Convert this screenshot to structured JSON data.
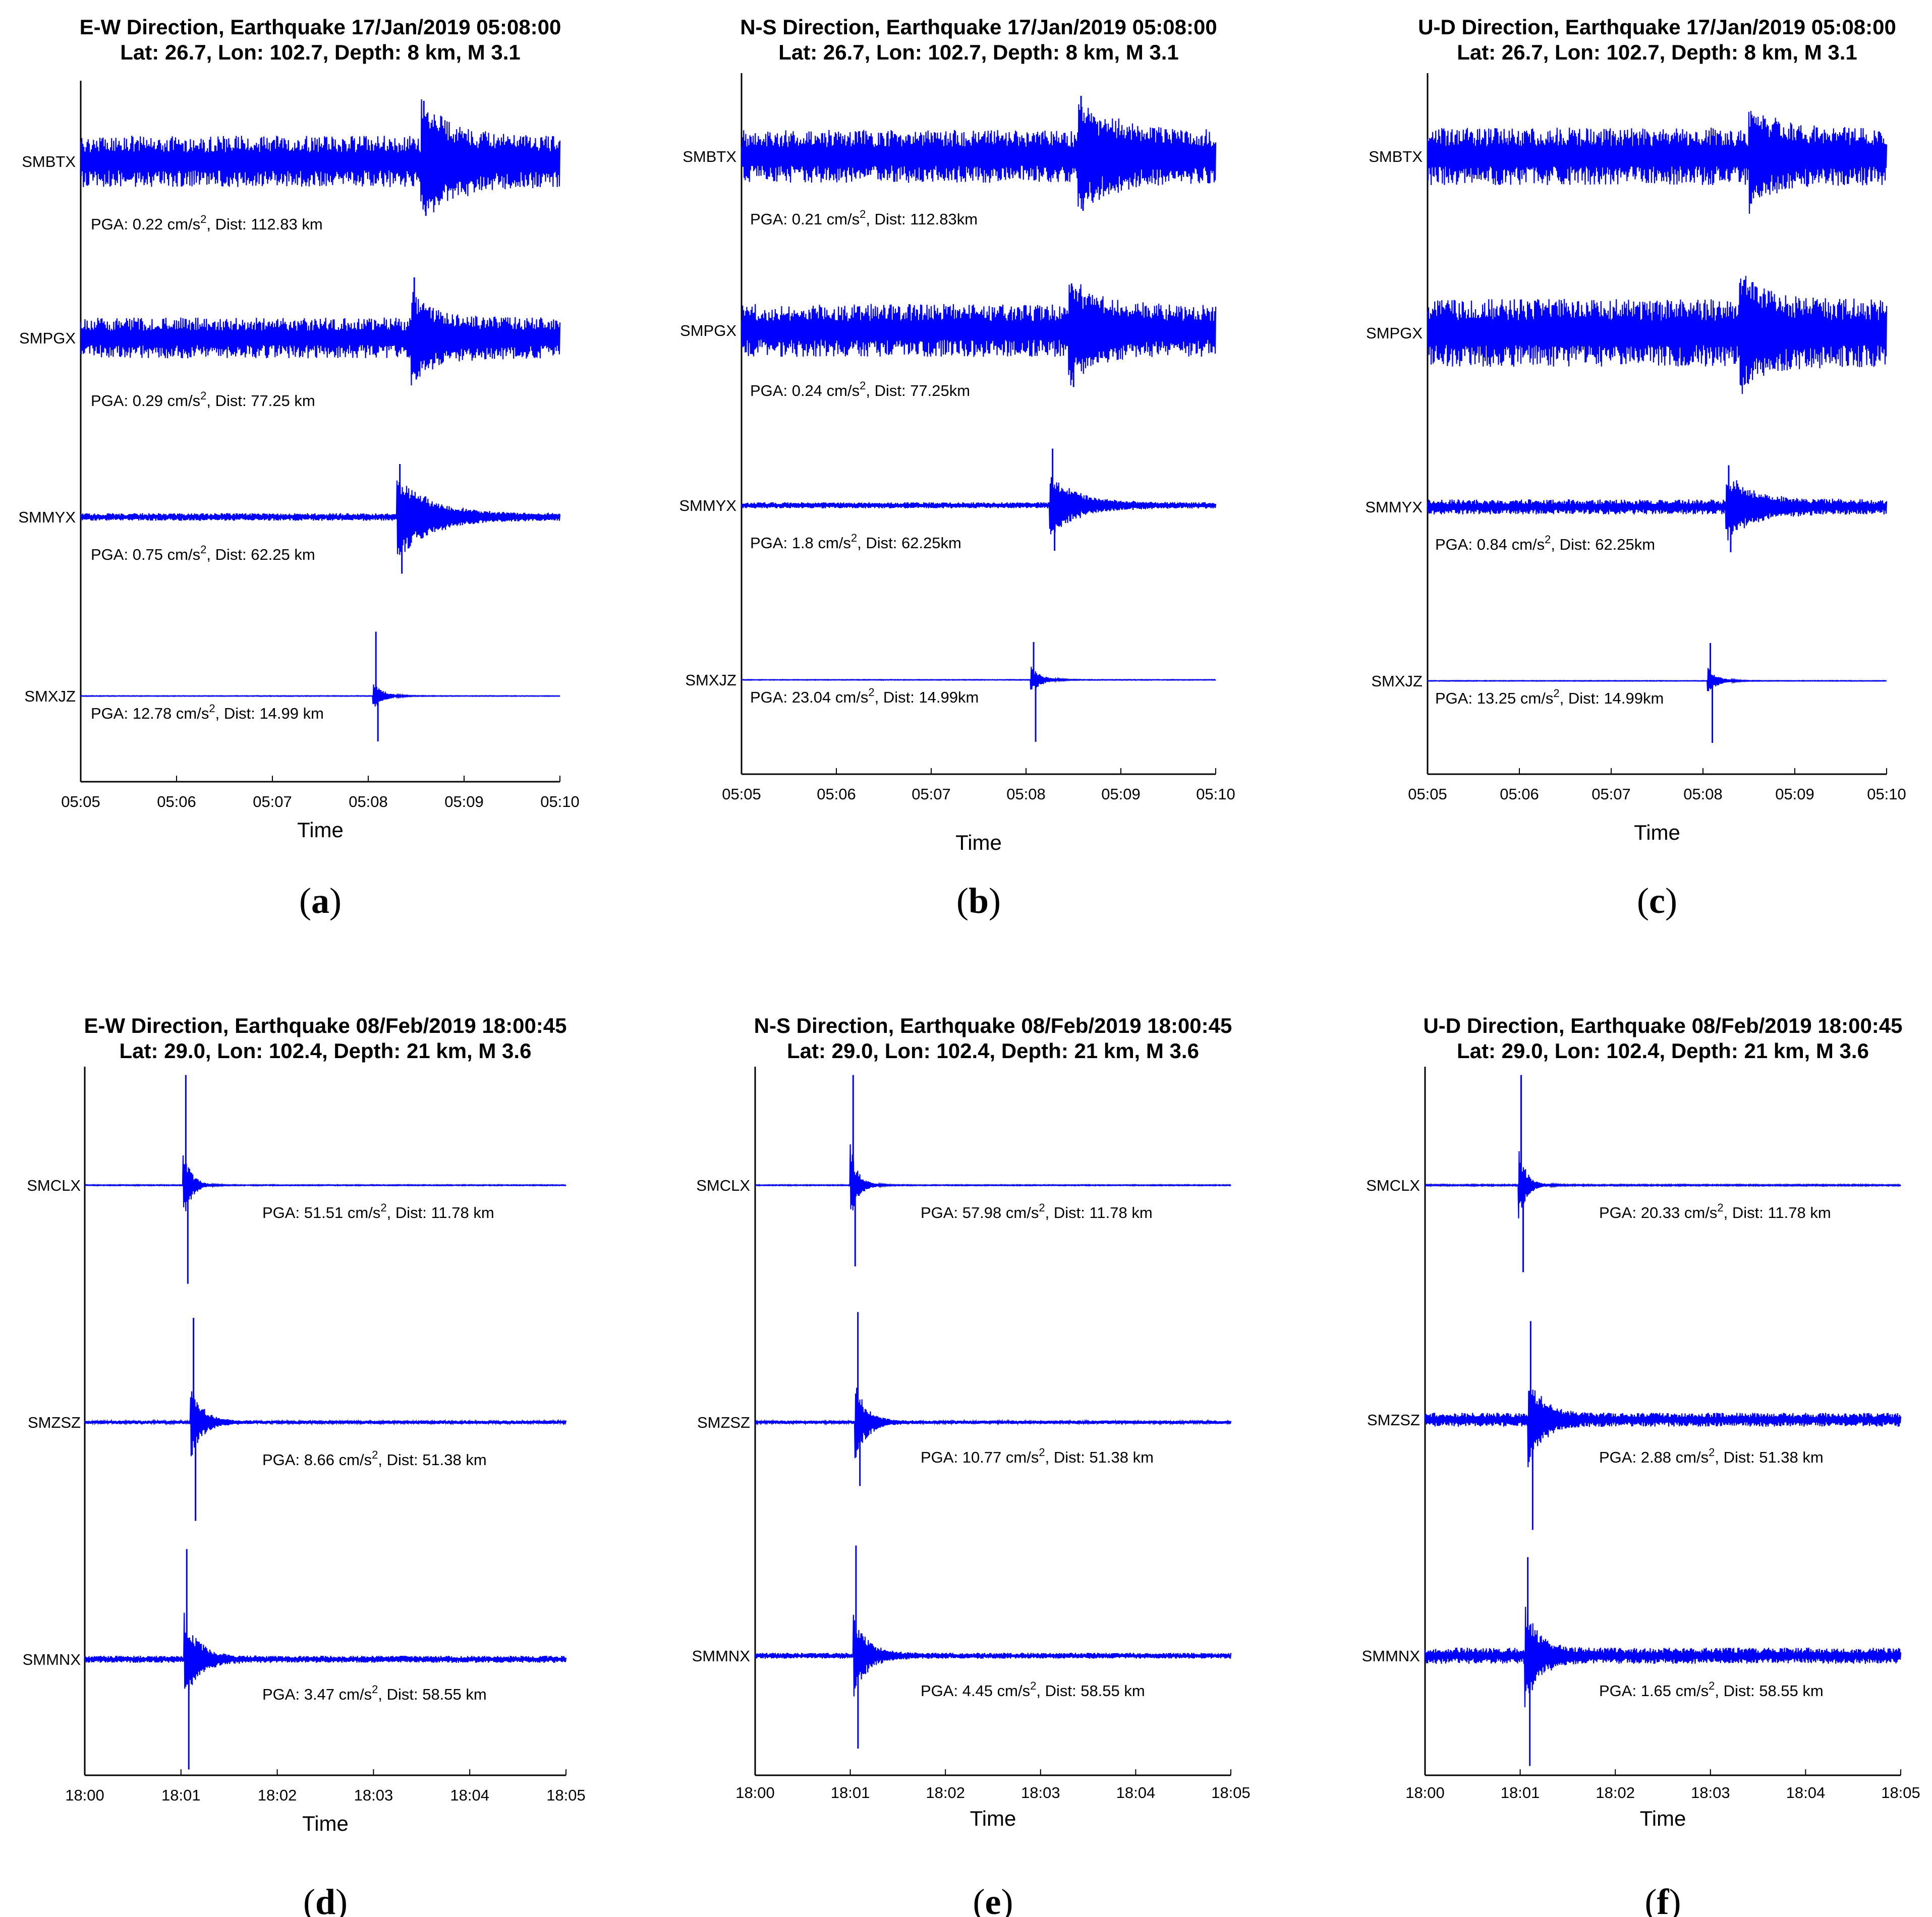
{
  "colors": {
    "trace": "#0000ff",
    "axis": "#000000",
    "background": "#ffffff"
  },
  "chart_data": [
    {
      "panel": "a",
      "type": "line",
      "caption": "a",
      "title_line1": "E-W Direction, Earthquake 17/Jan/2019 05:08:00",
      "title_line2": "Lat: 26.7, Lon: 102.7, Depth: 8 km, M 3.1",
      "xlabel": "Time",
      "xticks": [
        "05:05",
        "05:06",
        "05:07",
        "05:08",
        "05:09",
        "05:10"
      ],
      "x_range_min": [
        0,
        5
      ],
      "stations": [
        {
          "name": "SMBTX",
          "pga_value": "0.22",
          "pga_unit": "cm/s",
          "pga_exp": "2",
          "dist": "112.83 km",
          "arrival_min": 3.55,
          "noise": 0.34,
          "event": 0.55,
          "decay": 0.35,
          "spike_up": 0.8,
          "spike_dn": 0.72
        },
        {
          "name": "SMPGX",
          "pga_value": "0.29",
          "pga_unit": "cm/s",
          "pga_exp": "2",
          "dist": "77.25 km",
          "arrival_min": 3.45,
          "noise": 0.27,
          "event": 0.4,
          "decay": 0.3,
          "spike_up": 0.8,
          "spike_dn": 0.55
        },
        {
          "name": "SMMYX",
          "pga_value": "0.75",
          "pga_unit": "cm/s",
          "pga_exp": "2",
          "dist": "62.25 km",
          "arrival_min": 3.3,
          "noise": 0.05,
          "event": 0.55,
          "decay": 0.35,
          "spike_up": 0.7,
          "spike_dn": 0.75
        },
        {
          "name": "SMXJZ",
          "pga_value": "12.78",
          "pga_unit": "cm/s",
          "pga_exp": "2",
          "dist": "14.99 km",
          "arrival_min": 3.05,
          "noise": 0.004,
          "event": 0.2,
          "decay": 0.1,
          "spike_up": 0.85,
          "spike_dn": 0.6
        }
      ]
    },
    {
      "panel": "b",
      "type": "line",
      "caption": "b",
      "title_line1": "N-S Direction, Earthquake 17/Jan/2019 05:08:00",
      "title_line2": "Lat: 26.7, Lon: 102.7, Depth: 8 km, M 3.1",
      "xlabel": "Time",
      "xticks": [
        "05:05",
        "05:06",
        "05:07",
        "05:08",
        "05:09",
        "05:10"
      ],
      "x_range_min": [
        0,
        5
      ],
      "stations": [
        {
          "name": "SMBTX",
          "pga_value": "0.21",
          "pga_unit": "cm/s",
          "pga_exp": "2",
          "dist": "112.83km",
          "arrival_min": 3.55,
          "noise": 0.35,
          "event": 0.55,
          "decay": 0.35,
          "spike_up": 0.8,
          "spike_dn": 0.72
        },
        {
          "name": "SMPGX",
          "pga_value": "0.24",
          "pga_unit": "cm/s",
          "pga_exp": "2",
          "dist": "77.25km",
          "arrival_min": 3.45,
          "noise": 0.35,
          "event": 0.45,
          "decay": 0.3,
          "spike_up": 0.62,
          "spike_dn": 0.75
        },
        {
          "name": "SMMYX",
          "pga_value": "1.8",
          "pga_unit": "cm/s",
          "pga_exp": "2",
          "dist": "62.25km",
          "arrival_min": 3.25,
          "noise": 0.04,
          "event": 0.4,
          "decay": 0.3,
          "spike_up": 0.75,
          "spike_dn": 0.6
        },
        {
          "name": "SMXJZ",
          "pga_value": "23.04",
          "pga_unit": "cm/s",
          "pga_exp": "2",
          "dist": "14.99km",
          "arrival_min": 3.05,
          "noise": 0.004,
          "event": 0.2,
          "decay": 0.1,
          "spike_up": 0.5,
          "spike_dn": 0.82
        }
      ]
    },
    {
      "panel": "c",
      "type": "line",
      "caption": "c",
      "title_line1": "U-D Direction, Earthquake 17/Jan/2019 05:08:00",
      "title_line2": "Lat: 26.7, Lon: 102.7, Depth: 8 km, M 3.1",
      "xlabel": "Time",
      "xticks": [
        "05:05",
        "05:06",
        "05:07",
        "05:08",
        "05:09",
        "05:10"
      ],
      "x_range_min": [
        0,
        5
      ],
      "stations": [
        {
          "name": "SMBTX",
          "pga_value": "",
          "pga_unit": "",
          "pga_exp": "",
          "dist": "",
          "arrival_min": 3.5,
          "noise": 0.38,
          "event": 0.4,
          "decay": 0.3,
          "spike_up": 0.55,
          "spike_dn": 0.45
        },
        {
          "name": "SMPGX",
          "pga_value": "",
          "pga_unit": "",
          "pga_exp": "",
          "dist": "",
          "arrival_min": 3.4,
          "noise": 0.45,
          "event": 0.5,
          "decay": 0.3,
          "spike_up": 0.62,
          "spike_dn": 0.5
        },
        {
          "name": "SMMYX",
          "pga_value": "0.84",
          "pga_unit": "cm/s",
          "pga_exp": "2",
          "dist": "62.25km",
          "arrival_min": 3.25,
          "noise": 0.1,
          "event": 0.4,
          "decay": 0.3,
          "spike_up": 0.55,
          "spike_dn": 0.6
        },
        {
          "name": "SMXJZ",
          "pga_value": "13.25",
          "pga_unit": "cm/s",
          "pga_exp": "2",
          "dist": "14.99km",
          "arrival_min": 3.05,
          "noise": 0.004,
          "event": 0.18,
          "decay": 0.1,
          "spike_up": 0.5,
          "spike_dn": 0.82
        }
      ]
    },
    {
      "panel": "d",
      "type": "line",
      "caption": "d",
      "title_line1": "E-W Direction, Earthquake 08/Feb/2019 18:00:45",
      "title_line2": "Lat: 29.0, Lon: 102.4, Depth: 21 km, M 3.6",
      "xlabel": "Time",
      "xticks": [
        "18:00",
        "18:01",
        "18:02",
        "18:03",
        "18:04",
        "18:05"
      ],
      "x_range_min": [
        0,
        5
      ],
      "stations": [
        {
          "name": "SMCLX",
          "pga_value": "51.51",
          "pga_unit": "cm/s",
          "pga_exp": "2",
          "dist": "11.78 km",
          "arrival_min": 1.02,
          "noise": 0.004,
          "event": 0.35,
          "decay": 0.08,
          "spike_up": 0.95,
          "spike_dn": 0.85
        },
        {
          "name": "SMZSZ",
          "pga_value": "8.66",
          "pga_unit": "cm/s",
          "pga_exp": "2",
          "dist": "51.38 km",
          "arrival_min": 1.1,
          "noise": 0.015,
          "event": 0.35,
          "decay": 0.12,
          "spike_up": 0.9,
          "spike_dn": 0.85
        },
        {
          "name": "SMMNX",
          "pga_value": "3.47",
          "pga_unit": "cm/s",
          "pga_exp": "2",
          "dist": "58.55 km",
          "arrival_min": 1.03,
          "noise": 0.03,
          "event": 0.4,
          "decay": 0.15,
          "spike_up": 0.95,
          "spike_dn": 0.95
        }
      ]
    },
    {
      "panel": "e",
      "type": "line",
      "caption": "e",
      "title_line1": "N-S Direction, Earthquake 08/Feb/2019 18:00:45",
      "title_line2": "Lat: 29.0, Lon: 102.4, Depth: 21 km, M 3.6",
      "xlabel": "Time",
      "xticks": [
        "18:00",
        "18:01",
        "18:02",
        "18:03",
        "18:04",
        "18:05"
      ],
      "x_range_min": [
        0,
        5
      ],
      "stations": [
        {
          "name": "SMCLX",
          "pga_value": "57.98",
          "pga_unit": "cm/s",
          "pga_exp": "2",
          "dist": "11.78 km",
          "arrival_min": 1.0,
          "noise": 0.004,
          "event": 0.35,
          "decay": 0.08,
          "spike_up": 0.95,
          "spike_dn": 0.7
        },
        {
          "name": "SMZSZ",
          "pga_value": "10.77",
          "pga_unit": "cm/s",
          "pga_exp": "2",
          "dist": "51.38 km",
          "arrival_min": 1.05,
          "noise": 0.015,
          "event": 0.35,
          "decay": 0.12,
          "spike_up": 0.95,
          "spike_dn": 0.55
        },
        {
          "name": "SMMNX",
          "pga_value": "4.45",
          "pga_unit": "cm/s",
          "pga_exp": "2",
          "dist": "58.55 km",
          "arrival_min": 1.03,
          "noise": 0.025,
          "event": 0.35,
          "decay": 0.15,
          "spike_up": 0.95,
          "spike_dn": 0.8
        }
      ]
    },
    {
      "panel": "f",
      "type": "line",
      "caption": "f",
      "title_line1": "U-D Direction, Earthquake 08/Feb/2019 18:00:45",
      "title_line2": "Lat: 29.0, Lon: 102.4, Depth: 21 km, M 3.6",
      "xlabel": "Time",
      "xticks": [
        "18:00",
        "18:01",
        "18:02",
        "18:03",
        "18:04",
        "18:05"
      ],
      "x_range_min": [
        0,
        5
      ],
      "stations": [
        {
          "name": "SMCLX",
          "pga_value": "20.33",
          "pga_unit": "cm/s",
          "pga_exp": "2",
          "dist": "11.78 km",
          "arrival_min": 0.98,
          "noise": 0.006,
          "event": 0.35,
          "decay": 0.08,
          "spike_up": 0.95,
          "spike_dn": 0.75
        },
        {
          "name": "SMZSZ",
          "pga_value": "2.88",
          "pga_unit": "cm/s",
          "pga_exp": "2",
          "dist": "51.38 km",
          "arrival_min": 1.08,
          "noise": 0.06,
          "event": 0.4,
          "decay": 0.15,
          "spike_up": 0.85,
          "spike_dn": 0.95
        },
        {
          "name": "SMMNX",
          "pga_value": "1.65",
          "pga_unit": "cm/s",
          "pga_exp": "2",
          "dist": "58.55 km",
          "arrival_min": 1.05,
          "noise": 0.07,
          "event": 0.4,
          "decay": 0.15,
          "spike_up": 0.85,
          "spike_dn": 0.95
        }
      ]
    }
  ]
}
